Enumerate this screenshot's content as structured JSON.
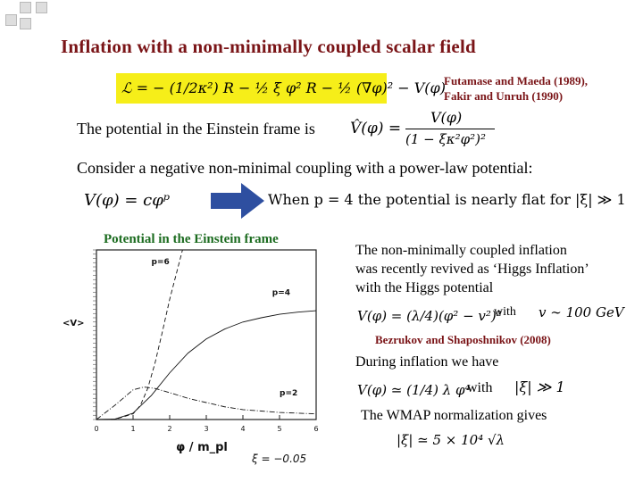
{
  "slide": {
    "title": "Inflation with a non-minimally coupled scalar field",
    "lagrangian": "ℒ = − (1/2κ²) R − ½ ξ φ² R − ½ (∇φ)² − V(φ)",
    "references_top": [
      "Futamase and Maeda (1989),",
      "Fakir and Unruh (1990)"
    ],
    "einstein_frame_text": "The potential in the Einstein frame is",
    "einstein_frame_eq": {
      "lhs": "V̂(φ) =",
      "num": "V(φ)",
      "den": "(1 − ξκ²φ²)²"
    },
    "consider_text": "Consider a negative non-minimal coupling with a power-law potential:",
    "power_law_eq": "V(φ) = cφᵖ",
    "when_text": "When p = 4 the potential is nearly flat for |ξ| ≫ 1",
    "plot_title": "Potential in the Einstein frame",
    "higgs_text": [
      "The non-minimally coupled inflation",
      "was recently revived as ‘Higgs Inflation’",
      "with the Higgs potential"
    ],
    "higgs_eq": "V(φ) = (λ/4)(φ² − v²)²",
    "with1": "with",
    "v_value": "v ∼ 100 GeV",
    "ref_bezrukov": "Bezrukov and Shaposhnikov (2008)",
    "during_text": "During inflation we have",
    "inflation_eq": "V(φ) ≃ (1/4) λ φ⁴",
    "with2": "with",
    "xi_large": "|ξ| ≫ 1",
    "wmap_text": "The WMAP normalization gives",
    "wmap_eq": "|ξ| ≃ 5 × 10⁴ √λ"
  },
  "chart_data": {
    "type": "line",
    "xlabel": "φ / m_pl",
    "ylabel": "<V>",
    "x_ticks": [
      "0",
      "1",
      "2",
      "3",
      "4",
      "5",
      "6"
    ],
    "xlim": [
      0,
      6
    ],
    "ylim": [
      0,
      1.2
    ],
    "annotation": "ξ = −0.05",
    "series": [
      {
        "name": "p=6",
        "style": "dashed",
        "x": [
          0,
          0.5,
          1.0,
          1.2,
          1.4,
          1.6,
          1.8,
          2.0,
          2.2,
          2.35
        ],
        "y": [
          0,
          0.001,
          0.04,
          0.1,
          0.22,
          0.4,
          0.62,
          0.85,
          1.05,
          1.2
        ]
      },
      {
        "name": "p=4",
        "style": "solid",
        "x": [
          0,
          0.5,
          1.0,
          1.5,
          2.0,
          2.5,
          3.0,
          3.5,
          4.0,
          4.5,
          5.0,
          5.5,
          6.0
        ],
        "y": [
          0,
          0.003,
          0.045,
          0.17,
          0.33,
          0.47,
          0.57,
          0.64,
          0.69,
          0.72,
          0.745,
          0.76,
          0.77
        ]
      },
      {
        "name": "p=2",
        "style": "dash-dot",
        "x": [
          0,
          0.5,
          1.0,
          1.3,
          1.6,
          2.0,
          2.5,
          3.0,
          3.5,
          4.0,
          4.5,
          5.0,
          5.5,
          6.0
        ],
        "y": [
          0,
          0.1,
          0.21,
          0.23,
          0.22,
          0.19,
          0.15,
          0.12,
          0.09,
          0.07,
          0.06,
          0.05,
          0.045,
          0.04
        ]
      }
    ],
    "curve_labels": [
      "p=6",
      "p=4",
      "p=2"
    ],
    "grid": false,
    "legend": "none"
  }
}
